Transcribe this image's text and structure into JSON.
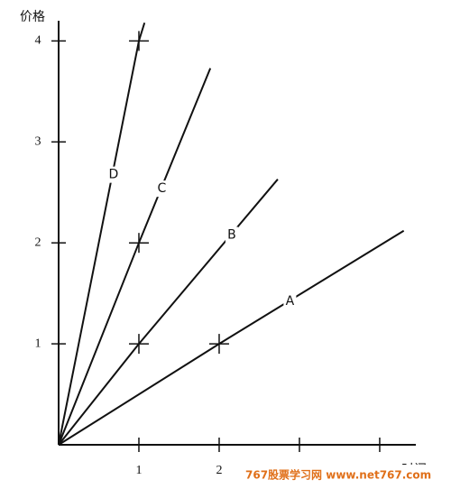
{
  "chart_data": {
    "type": "line",
    "y_label": "价格",
    "x_label": "时间",
    "xlim": [
      0,
      4.45
    ],
    "ylim": [
      0,
      4.2
    ],
    "xticks": [
      1,
      2,
      3,
      4
    ],
    "yticks": [
      1,
      2,
      3,
      4
    ],
    "series": [
      {
        "name": "A",
        "color": "#111111",
        "x": [
          0,
          2,
          4.3
        ],
        "values": [
          0,
          1,
          2.12
        ]
      },
      {
        "name": "B",
        "color": "#111111",
        "x": [
          0,
          1,
          2.73
        ],
        "values": [
          0,
          1,
          2.63
        ]
      },
      {
        "name": "C",
        "color": "#111111",
        "x": [
          0,
          1,
          1.89
        ],
        "values": [
          0,
          2,
          3.73
        ]
      },
      {
        "name": "D",
        "color": "#111111",
        "x": [
          0,
          1,
          1.07
        ],
        "values": [
          0,
          4,
          4.18
        ]
      }
    ],
    "watermark": "767股票学习网 www.net767.com"
  }
}
